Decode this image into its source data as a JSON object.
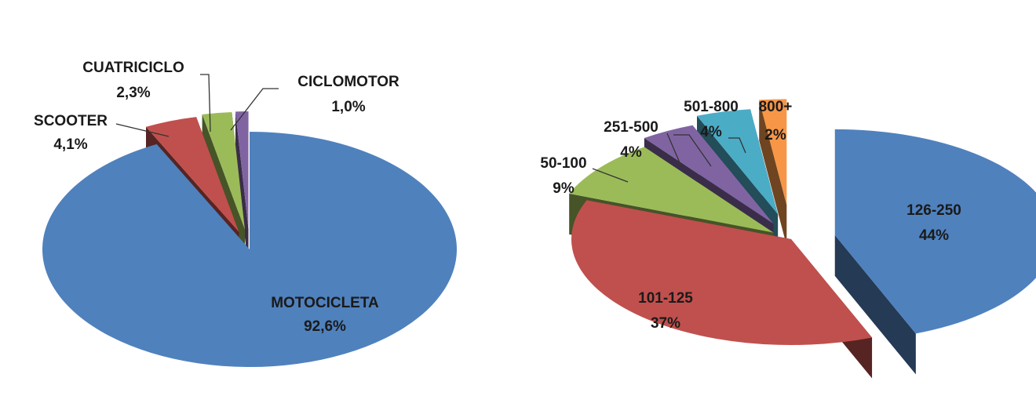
{
  "chart_data": [
    {
      "type": "pie",
      "style": "3d-exploded",
      "legend": "none",
      "categories": [
        "MOTOCICLETA",
        "SCOOTER",
        "CUATRICICLO",
        "CICLOMOTOR"
      ],
      "values": [
        92.6,
        4.1,
        2.3,
        1.0
      ],
      "value_labels": [
        "92,6%",
        "4,1%",
        "2,3%",
        "1,0%"
      ],
      "colors": [
        "#4F81BD",
        "#C0504D",
        "#9BBB59",
        "#8064A2"
      ]
    },
    {
      "type": "pie",
      "style": "3d-exploded",
      "legend": "none",
      "categories": [
        "126-250",
        "101-125",
        "50-100",
        "251-500",
        "501-800",
        "800+"
      ],
      "values": [
        44,
        37,
        9,
        4,
        4,
        2
      ],
      "value_labels": [
        "44%",
        "37%",
        "9%",
        "4%",
        "4%",
        "2%"
      ],
      "colors": [
        "#4F81BD",
        "#C0504D",
        "#9BBB59",
        "#8064A2",
        "#4BACC6",
        "#F79646"
      ]
    }
  ]
}
